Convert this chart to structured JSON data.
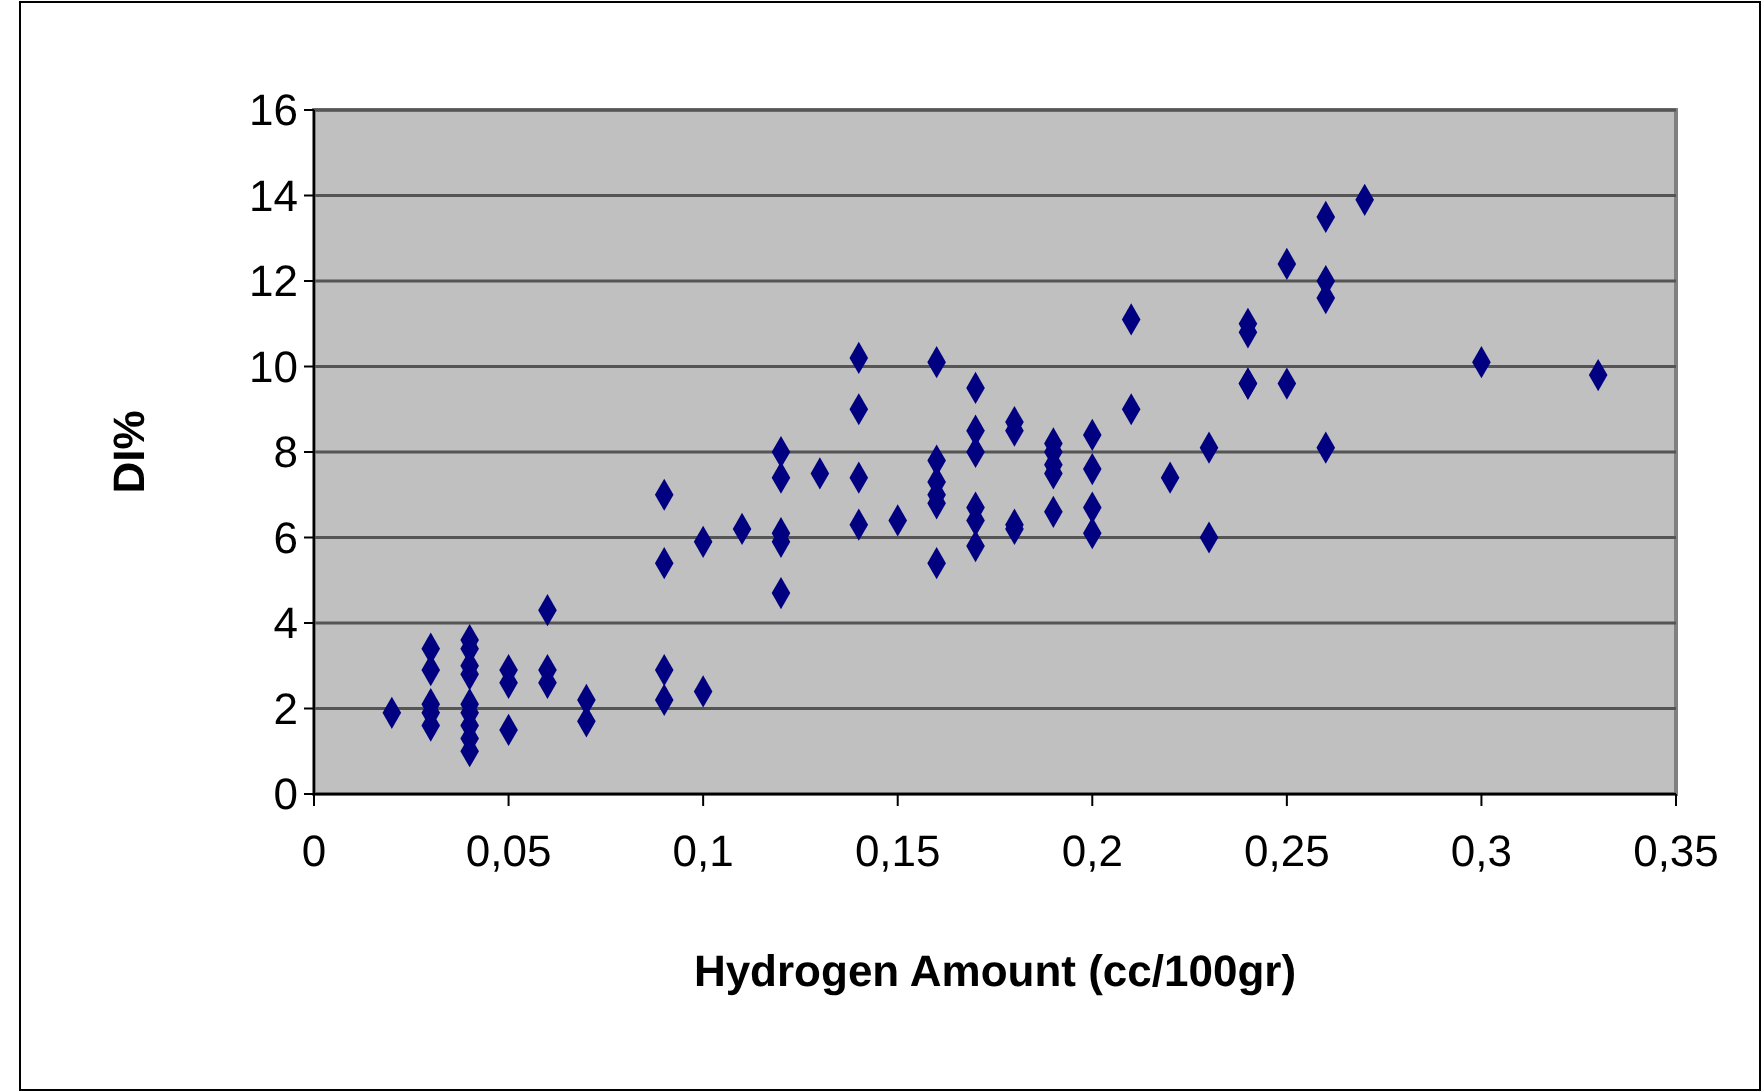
{
  "chart_data": {
    "type": "scatter",
    "xlabel": "Hydrogen Amount (cc/100gr)",
    "ylabel": "DI%",
    "xlim": [
      0,
      0.35
    ],
    "xticks": [
      {
        "value": 0,
        "label": "0"
      },
      {
        "value": 0.05,
        "label": "0,05"
      },
      {
        "value": 0.1,
        "label": "0,1"
      },
      {
        "value": 0.15,
        "label": "0,15"
      },
      {
        "value": 0.2,
        "label": "0,2"
      },
      {
        "value": 0.25,
        "label": "0,25"
      },
      {
        "value": 0.3,
        "label": "0,3"
      },
      {
        "value": 0.35,
        "label": "0,35"
      }
    ],
    "ylim": [
      0,
      16
    ],
    "yticks": [
      0,
      2,
      4,
      6,
      8,
      10,
      12,
      14,
      16
    ],
    "grid": "y",
    "marker": "diamond",
    "series": [
      {
        "color": "#000080",
        "x": [
          0.02,
          0.03,
          0.03,
          0.03,
          0.03,
          0.03,
          0.04,
          0.04,
          0.04,
          0.04,
          0.04,
          0.04,
          0.04,
          0.04,
          0.04,
          0.05,
          0.05,
          0.05,
          0.06,
          0.06,
          0.06,
          0.07,
          0.07,
          0.09,
          0.09,
          0.09,
          0.09,
          0.1,
          0.1,
          0.11,
          0.12,
          0.12,
          0.12,
          0.12,
          0.12,
          0.13,
          0.14,
          0.14,
          0.14,
          0.14,
          0.15,
          0.16,
          0.16,
          0.16,
          0.16,
          0.16,
          0.16,
          0.17,
          0.17,
          0.17,
          0.17,
          0.17,
          0.17,
          0.18,
          0.18,
          0.18,
          0.18,
          0.19,
          0.19,
          0.19,
          0.19,
          0.19,
          0.2,
          0.2,
          0.2,
          0.2,
          0.21,
          0.21,
          0.22,
          0.23,
          0.23,
          0.24,
          0.24,
          0.24,
          0.24,
          0.25,
          0.25,
          0.26,
          0.26,
          0.26,
          0.26,
          0.27,
          0.3,
          0.33
        ],
        "values": [
          1.9,
          3.4,
          2.9,
          2.1,
          1.9,
          1.6,
          3.6,
          3.4,
          3.0,
          2.8,
          2.1,
          1.9,
          1.6,
          1.3,
          1.0,
          2.9,
          2.6,
          1.5,
          4.3,
          2.9,
          2.6,
          2.2,
          1.7,
          7.0,
          5.4,
          2.9,
          2.2,
          5.9,
          2.4,
          6.2,
          8.0,
          7.4,
          6.1,
          5.9,
          4.7,
          7.5,
          10.2,
          9.0,
          7.4,
          6.3,
          6.4,
          10.1,
          7.8,
          7.3,
          7.0,
          6.8,
          5.4,
          9.5,
          8.5,
          8.0,
          6.7,
          6.4,
          5.8,
          8.7,
          8.5,
          6.3,
          6.2,
          8.2,
          8.0,
          7.7,
          7.5,
          6.6,
          8.4,
          7.6,
          6.7,
          6.1,
          11.1,
          9.0,
          7.4,
          8.1,
          6.0,
          11.0,
          10.8,
          9.6,
          9.6,
          12.4,
          9.6,
          13.5,
          12.0,
          11.6,
          8.1,
          13.9,
          10.1,
          9.8
        ]
      }
    ]
  }
}
